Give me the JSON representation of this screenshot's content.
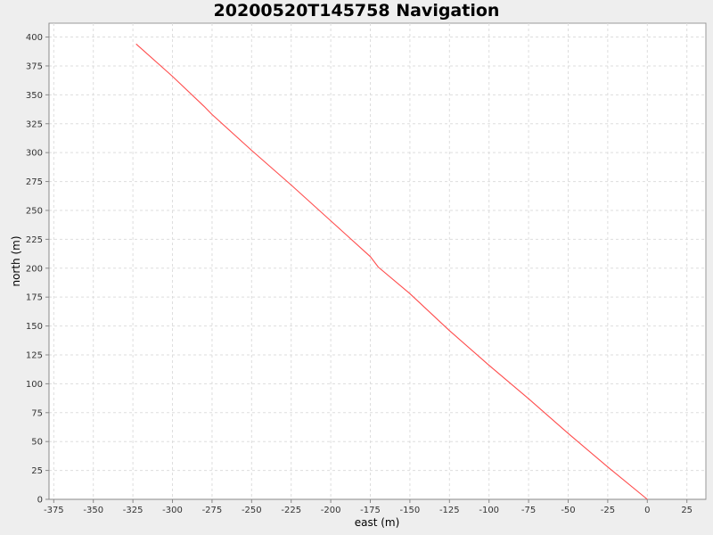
{
  "chart_data": {
    "type": "line",
    "title": "20200520T145758 Navigation",
    "xlabel": "east (m)",
    "ylabel": "north (m)",
    "xlim": [
      -378,
      37
    ],
    "ylim": [
      0,
      412
    ],
    "xticks": [
      -375,
      -350,
      -325,
      -300,
      -275,
      -250,
      -225,
      -200,
      -175,
      -150,
      -125,
      -100,
      -75,
      -50,
      -25,
      0,
      25
    ],
    "yticks": [
      0,
      25,
      50,
      75,
      100,
      125,
      150,
      175,
      200,
      225,
      250,
      275,
      300,
      325,
      350,
      375,
      400
    ],
    "grid": true,
    "series": [
      {
        "color": "#ff4d4d",
        "x": [
          -323,
          -300,
          -280,
          -275,
          -250,
          -225,
          -200,
          -175,
          -170,
          -150,
          -125,
          -100,
          -75,
          -50,
          -25,
          0
        ],
        "y": [
          394,
          366,
          340,
          333,
          302,
          272,
          241,
          210,
          201,
          178,
          146,
          116,
          87,
          57,
          28,
          0
        ]
      }
    ]
  }
}
